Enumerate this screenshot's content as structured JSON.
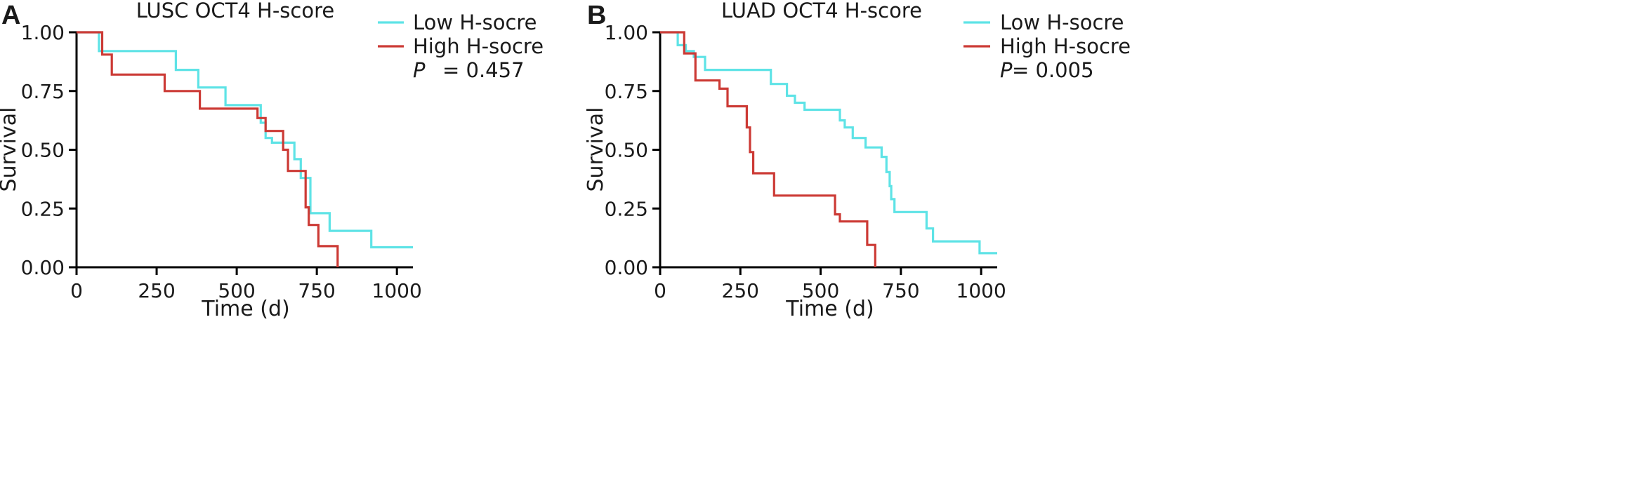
{
  "colors": {
    "low": "#5ee3e6",
    "high": "#cc3a35"
  },
  "chart_data": [
    {
      "type": "line",
      "panel_letter": "A",
      "title": "LUSC OCT4 H-score",
      "xlabel": "Time (d)",
      "ylabel": "Survival",
      "xlim": [
        0,
        1050
      ],
      "ylim": [
        0,
        1
      ],
      "x_ticks": [
        0,
        250,
        500,
        750,
        1000
      ],
      "x_tick_labels": [
        "0",
        "250",
        "500",
        "750",
        "1000"
      ],
      "y_ticks": [
        0,
        0.25,
        0.5,
        0.75,
        1
      ],
      "y_tick_labels": [
        "0.00",
        "0.25",
        "0.50",
        "0.75",
        "1.00"
      ],
      "legend_position": "top-right",
      "p_label": "P",
      "p_value": "= 0.457",
      "series": [
        {
          "name": "Low H-socre",
          "color_key": "low",
          "points": [
            [
              0,
              1.0
            ],
            [
              70,
              1.0
            ],
            [
              70,
              0.92
            ],
            [
              310,
              0.92
            ],
            [
              310,
              0.84
            ],
            [
              380,
              0.84
            ],
            [
              380,
              0.765
            ],
            [
              465,
              0.765
            ],
            [
              465,
              0.69
            ],
            [
              575,
              0.69
            ],
            [
              575,
              0.615
            ],
            [
              590,
              0.615
            ],
            [
              590,
              0.55
            ],
            [
              610,
              0.55
            ],
            [
              610,
              0.53
            ],
            [
              680,
              0.53
            ],
            [
              680,
              0.46
            ],
            [
              700,
              0.46
            ],
            [
              700,
              0.38
            ],
            [
              730,
              0.38
            ],
            [
              730,
              0.23
            ],
            [
              790,
              0.23
            ],
            [
              790,
              0.155
            ],
            [
              920,
              0.155
            ],
            [
              920,
              0.085
            ],
            [
              1050,
              0.085
            ]
          ]
        },
        {
          "name": "High H-socre",
          "color_key": "high",
          "points": [
            [
              0,
              1.0
            ],
            [
              80,
              1.0
            ],
            [
              80,
              0.905
            ],
            [
              110,
              0.905
            ],
            [
              110,
              0.82
            ],
            [
              275,
              0.82
            ],
            [
              275,
              0.75
            ],
            [
              385,
              0.75
            ],
            [
              385,
              0.675
            ],
            [
              565,
              0.675
            ],
            [
              565,
              0.635
            ],
            [
              590,
              0.635
            ],
            [
              590,
              0.58
            ],
            [
              645,
              0.58
            ],
            [
              645,
              0.5
            ],
            [
              660,
              0.5
            ],
            [
              660,
              0.41
            ],
            [
              715,
              0.41
            ],
            [
              715,
              0.255
            ],
            [
              725,
              0.255
            ],
            [
              725,
              0.18
            ],
            [
              755,
              0.18
            ],
            [
              755,
              0.09
            ],
            [
              815,
              0.09
            ],
            [
              815,
              0.0
            ]
          ]
        }
      ]
    },
    {
      "type": "line",
      "panel_letter": "B",
      "title": "LUAD OCT4 H-score",
      "xlabel": "Time (d)",
      "ylabel": "Survival",
      "xlim": [
        0,
        1050
      ],
      "ylim": [
        0,
        1
      ],
      "x_ticks": [
        0,
        250,
        500,
        750,
        1000
      ],
      "x_tick_labels": [
        "0",
        "250",
        "500",
        "750",
        "1000"
      ],
      "y_ticks": [
        0,
        0.25,
        0.5,
        0.75,
        1
      ],
      "y_tick_labels": [
        "0.00",
        "0.25",
        "0.50",
        "0.75",
        "1.00"
      ],
      "legend_position": "top-right",
      "p_label": "P",
      "p_value": "= 0.005",
      "series": [
        {
          "name": "Low H-socre",
          "color_key": "low",
          "points": [
            [
              0,
              1.0
            ],
            [
              55,
              1.0
            ],
            [
              55,
              0.945
            ],
            [
              80,
              0.945
            ],
            [
              80,
              0.92
            ],
            [
              105,
              0.92
            ],
            [
              105,
              0.895
            ],
            [
              140,
              0.895
            ],
            [
              140,
              0.84
            ],
            [
              345,
              0.84
            ],
            [
              345,
              0.78
            ],
            [
              395,
              0.78
            ],
            [
              395,
              0.73
            ],
            [
              420,
              0.73
            ],
            [
              420,
              0.7
            ],
            [
              450,
              0.7
            ],
            [
              450,
              0.67
            ],
            [
              560,
              0.67
            ],
            [
              560,
              0.625
            ],
            [
              575,
              0.625
            ],
            [
              575,
              0.595
            ],
            [
              600,
              0.595
            ],
            [
              600,
              0.55
            ],
            [
              640,
              0.55
            ],
            [
              640,
              0.51
            ],
            [
              690,
              0.51
            ],
            [
              690,
              0.47
            ],
            [
              705,
              0.47
            ],
            [
              705,
              0.405
            ],
            [
              715,
              0.405
            ],
            [
              715,
              0.345
            ],
            [
              720,
              0.345
            ],
            [
              720,
              0.29
            ],
            [
              730,
              0.29
            ],
            [
              730,
              0.235
            ],
            [
              830,
              0.235
            ],
            [
              830,
              0.165
            ],
            [
              850,
              0.165
            ],
            [
              850,
              0.11
            ],
            [
              995,
              0.11
            ],
            [
              995,
              0.06
            ],
            [
              1050,
              0.06
            ]
          ]
        },
        {
          "name": "High H-socre",
          "color_key": "high",
          "points": [
            [
              0,
              1.0
            ],
            [
              75,
              1.0
            ],
            [
              75,
              0.91
            ],
            [
              110,
              0.91
            ],
            [
              110,
              0.795
            ],
            [
              185,
              0.795
            ],
            [
              185,
              0.76
            ],
            [
              210,
              0.76
            ],
            [
              210,
              0.685
            ],
            [
              270,
              0.685
            ],
            [
              270,
              0.595
            ],
            [
              280,
              0.595
            ],
            [
              280,
              0.49
            ],
            [
              290,
              0.49
            ],
            [
              290,
              0.4
            ],
            [
              355,
              0.4
            ],
            [
              355,
              0.305
            ],
            [
              545,
              0.305
            ],
            [
              545,
              0.225
            ],
            [
              560,
              0.225
            ],
            [
              560,
              0.195
            ],
            [
              645,
              0.195
            ],
            [
              645,
              0.095
            ],
            [
              670,
              0.095
            ],
            [
              670,
              0.0
            ]
          ]
        }
      ]
    }
  ]
}
